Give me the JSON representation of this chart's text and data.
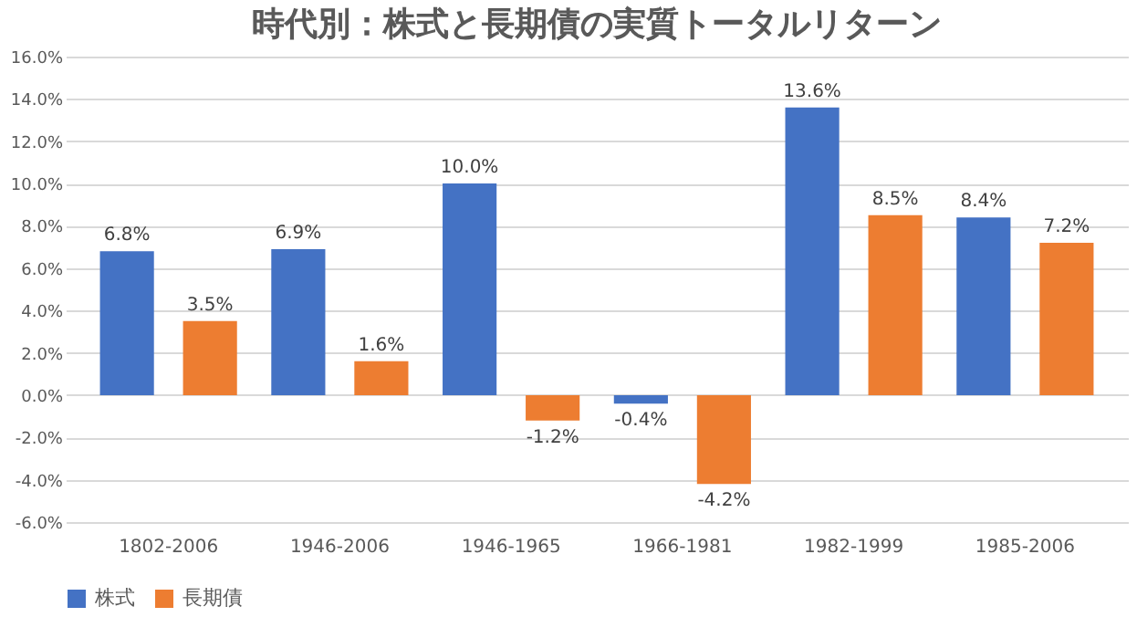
{
  "chart_data": {
    "type": "bar",
    "title": "時代別：株式と長期債の実質トータルリターン",
    "categories": [
      "1802-2006",
      "1946-2006",
      "1946-1965",
      "1966-1981",
      "1982-1999",
      "1985-2006"
    ],
    "series": [
      {
        "name": "株式",
        "color": "#4472c4",
        "values": [
          6.8,
          6.9,
          10.0,
          -0.4,
          13.6,
          8.4
        ],
        "value_labels": [
          "6.8%",
          "6.9%",
          "10.0%",
          "-0.4%",
          "13.6%",
          "8.4%"
        ]
      },
      {
        "name": "長期債",
        "color": "#ed7d31",
        "values": [
          3.5,
          1.6,
          -1.2,
          -4.2,
          8.5,
          7.2
        ],
        "value_labels": [
          "3.5%",
          "1.6%",
          "-1.2%",
          "-4.2%",
          "8.5%",
          "7.2%"
        ]
      }
    ],
    "ylim": [
      -6,
      16
    ],
    "yticks": [
      {
        "value": -6,
        "label": "-6.0%"
      },
      {
        "value": -4,
        "label": "-4.0%"
      },
      {
        "value": -2,
        "label": "-2.0%"
      },
      {
        "value": 0,
        "label": "0.0%"
      },
      {
        "value": 2,
        "label": "2.0%"
      },
      {
        "value": 4,
        "label": "4.0%"
      },
      {
        "value": 6,
        "label": "6.0%"
      },
      {
        "value": 8,
        "label": "8.0%"
      },
      {
        "value": 10,
        "label": "10.0%"
      },
      {
        "value": 12,
        "label": "12.0%"
      },
      {
        "value": 14,
        "label": "14.0%"
      },
      {
        "value": 16,
        "label": "16.0%"
      }
    ],
    "grid": "y",
    "legend": "bottom"
  }
}
